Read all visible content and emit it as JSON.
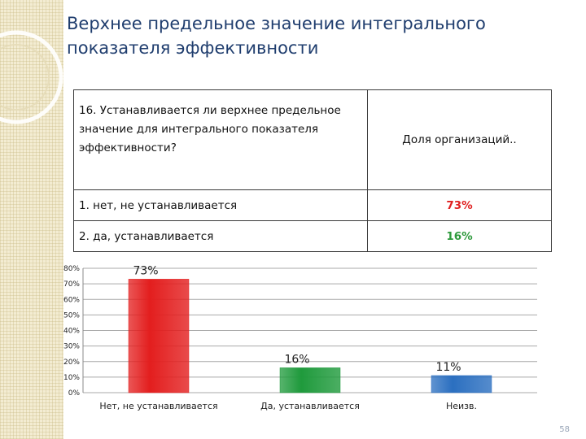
{
  "title": "Верхнее предельное значение интегрального показателя эффективности",
  "table": {
    "question": "16. Устанавливается ли верхнее предельное значение для интегрального показателя эффективности?",
    "column_header": "Доля организаций..",
    "rows": [
      {
        "label": "1. нет, не устанавливается",
        "value": "73%",
        "color": "#e02020"
      },
      {
        "label": "2. да, устанавливается",
        "value": "16%",
        "color": "#2e9a3c"
      }
    ]
  },
  "chart_data": {
    "type": "bar",
    "categories": [
      "Нет, не устанавливается",
      "Да, устанавливается",
      "Неизв."
    ],
    "values": [
      73,
      16,
      11
    ],
    "data_labels": [
      "73%",
      "16%",
      "11%"
    ],
    "colors": [
      "#e31e1e",
      "#1f9a3c",
      "#2b6fc0"
    ],
    "ylim": [
      0,
      80
    ],
    "yticks": [
      "0%",
      "10%",
      "20%",
      "30%",
      "40%",
      "50%",
      "60%",
      "70%",
      "80%"
    ],
    "grid": true
  },
  "page_number": "58"
}
